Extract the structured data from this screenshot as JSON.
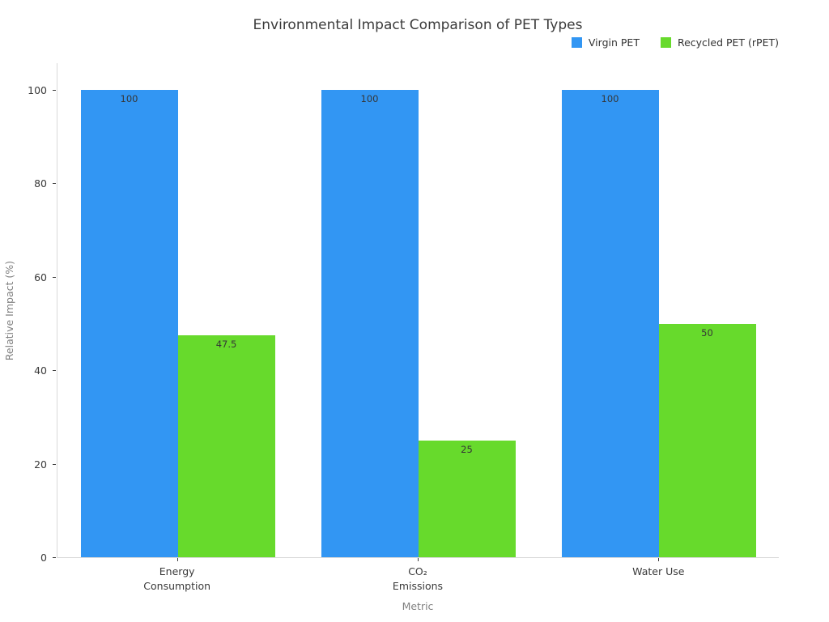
{
  "chart_data": {
    "type": "bar",
    "title": "Environmental Impact Comparison of PET Types",
    "xlabel": "Metric",
    "ylabel": "Relative Impact (%)",
    "categories": [
      "Energy\nConsumption",
      "CO₂\nEmissions",
      "Water Use"
    ],
    "series": [
      {
        "name": "Virgin PET",
        "color": "#3296f3",
        "values": [
          100,
          100,
          100
        ],
        "labels": [
          "100",
          "100",
          "100"
        ]
      },
      {
        "name": "Recycled PET (rPET)",
        "color": "#67da2c",
        "values": [
          47.5,
          25,
          50
        ],
        "labels": [
          "47.5",
          "25",
          "50"
        ]
      }
    ],
    "yticks": [
      0,
      20,
      40,
      60,
      80,
      100
    ],
    "ylim": [
      0,
      106
    ],
    "grid": false,
    "legend_position": "top-right",
    "background": "#ffffff",
    "spine_color": "#d9d9d9",
    "tick_color": "#3c3c3c",
    "text_color": "#3a3a3a",
    "axis_title_color": "#808080"
  }
}
